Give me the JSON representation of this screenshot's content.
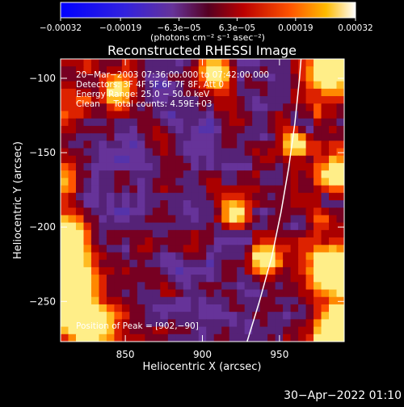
{
  "chart_data": {
    "type": "heatmap",
    "title": "Reconstructed RHESSI Image",
    "xlabel": "Heliocentric X (arcsec)",
    "ylabel": "Heliocentric Y (arcsec)",
    "xlim": [
      808,
      992
    ],
    "ylim": [
      -277,
      -87
    ],
    "x_ticks": [
      {
        "value": 850,
        "label": "850"
      },
      {
        "value": 900,
        "label": "900"
      },
      {
        "value": 950,
        "label": "950"
      }
    ],
    "y_ticks": [
      {
        "value": -100,
        "label": "−100"
      },
      {
        "value": -150,
        "label": "−150"
      },
      {
        "value": -200,
        "label": "−200"
      },
      {
        "value": -250,
        "label": "−250"
      }
    ],
    "colorbar": {
      "range": [
        -0.00032,
        0.00032
      ],
      "unit_label": "(photons cm⁻² s⁻¹ asec⁻²)",
      "ticks": [
        {
          "value": -0.00032,
          "label": "−0.00032"
        },
        {
          "value": -0.00019,
          "label": "−0.00019"
        },
        {
          "value": -6.3e-05,
          "label": "−6.3e−05"
        },
        {
          "value": 6.3e-05,
          "label": "6.3e−05"
        },
        {
          "value": 0.00019,
          "label": "0.00019"
        },
        {
          "value": 0.00032,
          "label": "0.00032"
        }
      ]
    },
    "info_lines": [
      "20−Mar−2003 07:36:00.000 to 07:42:00.000",
      "Detectors: 3F 4F 5F 6F 7F 8F, Att 0",
      "Energy Range: 25.0 − 50.0 keV",
      "Clean     Total counts: 4.59E+03"
    ],
    "peak_label": "Position of Peak = [902,−90]",
    "peak_position": [
      902,
      -90
    ],
    "limb_curve": [
      [
        929,
        -277
      ],
      [
        937,
        -250
      ],
      [
        945,
        -220
      ],
      [
        951,
        -190
      ],
      [
        956,
        -160
      ],
      [
        960,
        -130
      ],
      [
        963,
        -100
      ],
      [
        964,
        -87
      ]
    ],
    "grid_size": [
      37,
      38
    ],
    "colors": {
      "negative": "#0000ff",
      "mid": "#6633aa",
      "low": "#aa0000",
      "high": "#ff5500",
      "top": "#ffffcc"
    }
  },
  "timestamp": "30−Apr−2022 01:10"
}
